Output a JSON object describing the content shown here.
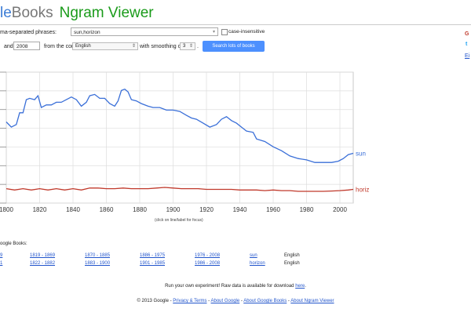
{
  "header": {
    "logo_partial_g": "le",
    "logo_books": "Books",
    "app_title": "Ngram Viewer"
  },
  "form": {
    "phrases_label": "ma-separated phrases:",
    "phrases_value": "sun,horizon",
    "case_label": "case-insensitive",
    "and_label": "and",
    "year_end": "2008",
    "corpus_label": "from the corpus",
    "corpus_value": "English",
    "smoothing_label": "with smoothing of",
    "smoothing_value": "3",
    "smoothing_suffix": ".",
    "search_button": "Search lots of books"
  },
  "right_side": {
    "letter_r": "G",
    "letter_t": "t",
    "letter_e": "Ei"
  },
  "chart_data": {
    "type": "line",
    "x_ticks": [
      "1800",
      "1820",
      "1840",
      "1860",
      "1880",
      "1900",
      "1920",
      "1940",
      "1960",
      "1980",
      "2000"
    ],
    "xlim": [
      1800,
      2008
    ],
    "ylim": [
      0,
      1
    ],
    "y_ticks_count": 8,
    "caption": "(click on line/label for focus)",
    "series": [
      {
        "name": "sun",
        "color": "#3a6fd8",
        "points": [
          [
            1800,
            0.62
          ],
          [
            1803,
            0.58
          ],
          [
            1806,
            0.6
          ],
          [
            1808,
            0.69
          ],
          [
            1810,
            0.69
          ],
          [
            1812,
            0.79
          ],
          [
            1814,
            0.8
          ],
          [
            1817,
            0.79
          ],
          [
            1819,
            0.82
          ],
          [
            1821,
            0.73
          ],
          [
            1824,
            0.75
          ],
          [
            1827,
            0.75
          ],
          [
            1830,
            0.77
          ],
          [
            1833,
            0.77
          ],
          [
            1836,
            0.79
          ],
          [
            1839,
            0.81
          ],
          [
            1842,
            0.79
          ],
          [
            1845,
            0.74
          ],
          [
            1848,
            0.77
          ],
          [
            1850,
            0.82
          ],
          [
            1853,
            0.83
          ],
          [
            1856,
            0.8
          ],
          [
            1859,
            0.8
          ],
          [
            1862,
            0.76
          ],
          [
            1865,
            0.74
          ],
          [
            1867,
            0.78
          ],
          [
            1869,
            0.86
          ],
          [
            1871,
            0.87
          ],
          [
            1873,
            0.85
          ],
          [
            1875,
            0.79
          ],
          [
            1878,
            0.78
          ],
          [
            1881,
            0.76
          ],
          [
            1885,
            0.74
          ],
          [
            1888,
            0.73
          ],
          [
            1892,
            0.73
          ],
          [
            1896,
            0.71
          ],
          [
            1900,
            0.71
          ],
          [
            1904,
            0.7
          ],
          [
            1908,
            0.67
          ],
          [
            1911,
            0.65
          ],
          [
            1914,
            0.64
          ],
          [
            1918,
            0.61
          ],
          [
            1922,
            0.58
          ],
          [
            1926,
            0.6
          ],
          [
            1929,
            0.64
          ],
          [
            1932,
            0.66
          ],
          [
            1935,
            0.63
          ],
          [
            1938,
            0.61
          ],
          [
            1941,
            0.58
          ],
          [
            1944,
            0.55
          ],
          [
            1948,
            0.54
          ],
          [
            1950,
            0.49
          ],
          [
            1955,
            0.47
          ],
          [
            1960,
            0.43
          ],
          [
            1965,
            0.4
          ],
          [
            1970,
            0.36
          ],
          [
            1975,
            0.34
          ],
          [
            1980,
            0.33
          ],
          [
            1985,
            0.31
          ],
          [
            1990,
            0.31
          ],
          [
            1995,
            0.31
          ],
          [
            1999,
            0.32
          ],
          [
            2002,
            0.34
          ],
          [
            2005,
            0.37
          ],
          [
            2008,
            0.38
          ]
        ]
      },
      {
        "name": "horizon",
        "color": "#c0392b",
        "points": [
          [
            1800,
            0.11
          ],
          [
            1805,
            0.1
          ],
          [
            1810,
            0.11
          ],
          [
            1815,
            0.1
          ],
          [
            1820,
            0.11
          ],
          [
            1825,
            0.1
          ],
          [
            1830,
            0.11
          ],
          [
            1835,
            0.1
          ],
          [
            1840,
            0.11
          ],
          [
            1845,
            0.1
          ],
          [
            1850,
            0.115
          ],
          [
            1855,
            0.115
          ],
          [
            1860,
            0.11
          ],
          [
            1865,
            0.11
          ],
          [
            1870,
            0.115
          ],
          [
            1875,
            0.11
          ],
          [
            1880,
            0.11
          ],
          [
            1885,
            0.11
          ],
          [
            1890,
            0.115
          ],
          [
            1895,
            0.12
          ],
          [
            1900,
            0.115
          ],
          [
            1905,
            0.11
          ],
          [
            1910,
            0.11
          ],
          [
            1915,
            0.11
          ],
          [
            1920,
            0.105
          ],
          [
            1925,
            0.105
          ],
          [
            1930,
            0.105
          ],
          [
            1935,
            0.105
          ],
          [
            1940,
            0.1
          ],
          [
            1945,
            0.1
          ],
          [
            1950,
            0.1
          ],
          [
            1955,
            0.095
          ],
          [
            1960,
            0.1
          ],
          [
            1965,
            0.095
          ],
          [
            1970,
            0.095
          ],
          [
            1975,
            0.09
          ],
          [
            1980,
            0.09
          ],
          [
            1985,
            0.09
          ],
          [
            1990,
            0.09
          ],
          [
            1995,
            0.092
          ],
          [
            2000,
            0.095
          ],
          [
            2005,
            0.1
          ],
          [
            2008,
            0.105
          ]
        ]
      }
    ]
  },
  "results": {
    "heading": "oogle Books:",
    "rows": [
      {
        "c0": "9",
        "c1": "1819 - 1869",
        "c2": "1870 - 1885",
        "c3": "1886 - 1975",
        "c4": "1976 - 2008",
        "word": "sun",
        "lang": "English"
      },
      {
        "c0": "1",
        "c1": "1822 - 1882",
        "c2": "1883 - 1900",
        "c3": "1901 - 1985",
        "c4": "1986 - 2008",
        "word": "horizon",
        "lang": "English"
      }
    ]
  },
  "footer": {
    "experiment_text": "Run your own experiment! Raw data is available for download",
    "experiment_link": "here",
    "experiment_end": ".",
    "copyright": "© 2013 Google -",
    "links": [
      "Privacy & Terms",
      "About Google",
      "About Google Books",
      "About Ngram Viewer"
    ],
    "sep": " - "
  }
}
